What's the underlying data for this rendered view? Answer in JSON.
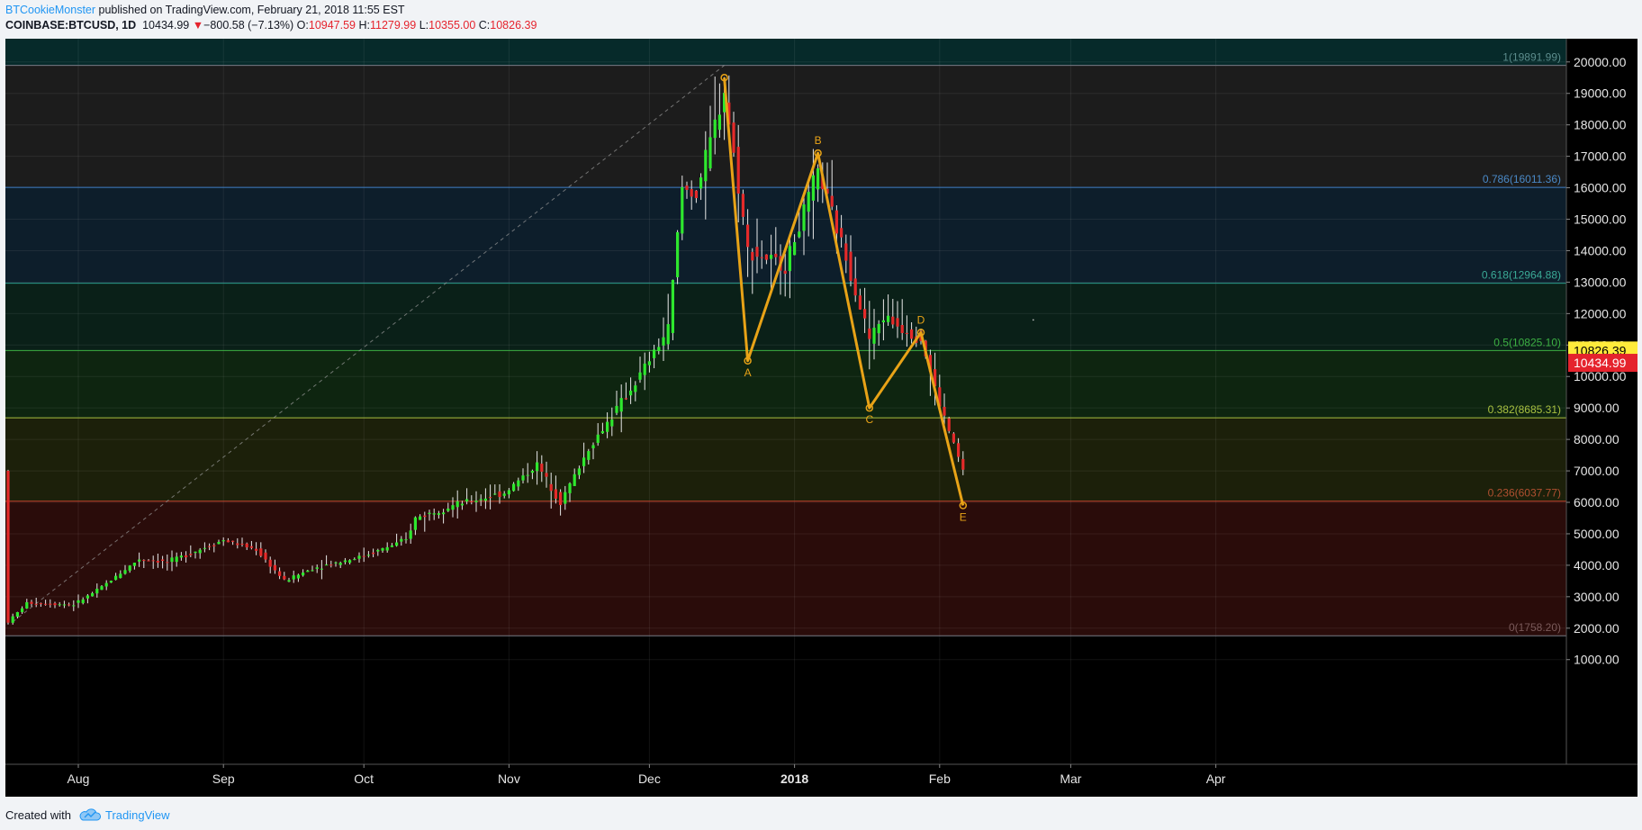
{
  "header": {
    "publisher": "BTCookieMonster",
    "published_text": " published on TradingView.com, February 21, 2018 11:55 EST",
    "symbol": "COINBASE:BTCUSD, 1D",
    "last": "10434.99",
    "change_arrow": "▼",
    "change": "−800.58 (−7.13%)",
    "open_label": "O:",
    "open": "10947.59",
    "high_label": "H:",
    "high": "11279.99",
    "low_label": "L:",
    "low": "10355.00",
    "close_label": "C:",
    "close": "10826.39"
  },
  "footer": {
    "created_with": "Created with",
    "brand": "TradingView"
  },
  "colors": {
    "up": "#2ee82e",
    "down": "#e52a2a",
    "pattern": "#e8a317",
    "close_badge": "#ffeb3b",
    "last_badge": "#e5232d"
  },
  "chart_data": {
    "type": "candlestick",
    "ylim": [
      1000,
      20000
    ],
    "price_ticks": [
      "20000.00",
      "19000.00",
      "18000.00",
      "17000.00",
      "16000.00",
      "15000.00",
      "14000.00",
      "13000.00",
      "12000.00",
      "11000.00",
      "10000.00",
      "9000.00",
      "8000.00",
      "7000.00",
      "6000.00",
      "5000.00",
      "4000.00",
      "3000.00",
      "2000.00",
      "1000.00"
    ],
    "time_ticks": [
      "Aug",
      "Sep",
      "Oct",
      "Nov",
      "Dec",
      "2018",
      "Feb",
      "Mar",
      "Apr"
    ],
    "time_tick_dates": [
      "2017-08-01",
      "2017-09-01",
      "2017-10-01",
      "2017-11-01",
      "2017-12-01",
      "2018-01-01",
      "2018-02-01",
      "2018-03-01",
      "2018-04-01"
    ],
    "fib_levels": [
      {
        "ratio": "1",
        "value": 19891.99,
        "label": "1(19891.99)",
        "line": "#787b86",
        "text": "#5c8c8c",
        "fill": "#1c1c1c"
      },
      {
        "ratio": "0.786",
        "value": 16011.36,
        "label": "0.786(16011.36)",
        "line": "#3a7ac0",
        "text": "#4a8ac8",
        "fill": "#0d1e2b"
      },
      {
        "ratio": "0.618",
        "value": 12964.88,
        "label": "0.618(12964.88)",
        "line": "#2a9a8a",
        "text": "#3aaa96",
        "fill": "#0a2018"
      },
      {
        "ratio": "0.5",
        "value": 10825.1,
        "label": "0.5(10825.10)",
        "line": "#3cb043",
        "text": "#3cb043",
        "fill": "#0e2510"
      },
      {
        "ratio": "0.382",
        "value": 8685.31,
        "label": "0.382(8685.31)",
        "line": "#a8c040",
        "text": "#a8c040",
        "fill": "#1c200a"
      },
      {
        "ratio": "0.236",
        "value": 6037.77,
        "label": "0.236(6037.77)",
        "line": "#c0402a",
        "text": "#b05030",
        "fill": "#2a0c0a"
      },
      {
        "ratio": "0",
        "value": 1758.2,
        "label": "0(1758.20)",
        "line": "#787b86",
        "text": "#7a5a5a",
        "fill": "#000000"
      }
    ],
    "top_band_fill": "#062a2a",
    "pattern_points": [
      {
        "label": "",
        "date": "2017-12-17",
        "value": 19500
      },
      {
        "label": "A",
        "date": "2017-12-22",
        "value": 10500
      },
      {
        "label": "B",
        "date": "2018-01-06",
        "value": 17100
      },
      {
        "label": "C",
        "date": "2018-01-17",
        "value": 9000
      },
      {
        "label": "D",
        "date": "2018-01-28",
        "value": 11400
      },
      {
        "label": "E",
        "date": "2018-02-06",
        "value": 5900
      }
    ],
    "trend_line": {
      "from": {
        "date": "2017-07-18",
        "value": 2200
      },
      "to": {
        "date": "2017-12-17",
        "value": 19891.99
      }
    },
    "close_price": "10826.39",
    "last_price": "10434.99",
    "candle_path": {
      "start": "2017-07-17",
      "end": "2018-02-06",
      "points": [
        {
          "date": "2017-07-17",
          "value": 2200
        },
        {
          "date": "2017-07-21",
          "value": 2800
        },
        {
          "date": "2017-07-31",
          "value": 2750
        },
        {
          "date": "2017-08-05",
          "value": 3200
        },
        {
          "date": "2017-08-14",
          "value": 4200
        },
        {
          "date": "2017-08-20",
          "value": 4100
        },
        {
          "date": "2017-09-01",
          "value": 4800
        },
        {
          "date": "2017-09-08",
          "value": 4500
        },
        {
          "date": "2017-09-14",
          "value": 3500
        },
        {
          "date": "2017-09-20",
          "value": 3900
        },
        {
          "date": "2017-10-01",
          "value": 4300
        },
        {
          "date": "2017-10-10",
          "value": 4800
        },
        {
          "date": "2017-10-12",
          "value": 5500
        },
        {
          "date": "2017-10-20",
          "value": 5900
        },
        {
          "date": "2017-10-31",
          "value": 6300
        },
        {
          "date": "2017-11-07",
          "value": 7200
        },
        {
          "date": "2017-11-12",
          "value": 6000
        },
        {
          "date": "2017-11-18",
          "value": 7700
        },
        {
          "date": "2017-11-28",
          "value": 9800
        },
        {
          "date": "2017-12-05",
          "value": 11500
        },
        {
          "date": "2017-12-08",
          "value": 16000
        },
        {
          "date": "2017-12-11",
          "value": 15800
        },
        {
          "date": "2017-12-17",
          "value": 19100
        },
        {
          "date": "2017-12-22",
          "value": 14000
        },
        {
          "date": "2017-12-30",
          "value": 13500
        },
        {
          "date": "2018-01-06",
          "value": 16500
        },
        {
          "date": "2018-01-12",
          "value": 13800
        },
        {
          "date": "2018-01-17",
          "value": 11200
        },
        {
          "date": "2018-01-20",
          "value": 11900
        },
        {
          "date": "2018-01-28",
          "value": 11200
        },
        {
          "date": "2018-02-01",
          "value": 9100
        },
        {
          "date": "2018-02-06",
          "value": 7000
        }
      ]
    }
  }
}
